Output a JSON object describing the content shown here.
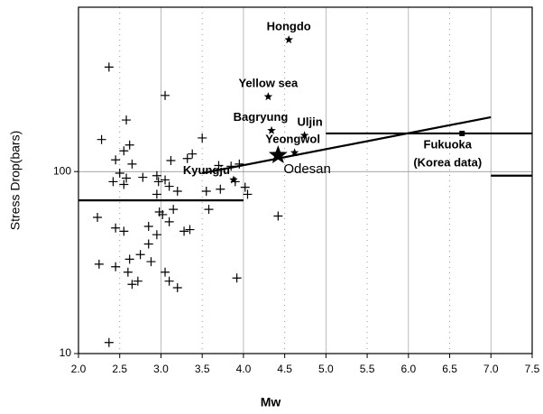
{
  "chart_data": {
    "type": "scatter",
    "x_label": "Mw",
    "y_label": "Stress Drop(bars)",
    "xlim": [
      2,
      7.5
    ],
    "xticks": [
      {
        "value": 2,
        "label": "2.0"
      },
      {
        "value": 2.5,
        "label": "2.5"
      },
      {
        "value": 3,
        "label": "3.0"
      },
      {
        "value": 3.5,
        "label": "3.5"
      },
      {
        "value": 4,
        "label": "4.0"
      },
      {
        "value": 4.5,
        "label": "4.5"
      },
      {
        "value": 5,
        "label": "5.0"
      },
      {
        "value": 5.5,
        "label": "5.5"
      },
      {
        "value": 6,
        "label": "6.0"
      },
      {
        "value": 6.5,
        "label": "6.5"
      },
      {
        "value": 7,
        "label": "7.0"
      },
      {
        "value": 7.5,
        "label": "7.5"
      }
    ],
    "ylim": [
      10,
      800
    ],
    "yticks": [
      10,
      100
    ],
    "log_y": true,
    "grid": true,
    "color": "#000000",
    "x": [
      2.37,
      3.05,
      2.58,
      2.28,
      3.5,
      2.62,
      2.55,
      3.38,
      3.32,
      3.12,
      2.45,
      2.65,
      3.7,
      3.85,
      2.5,
      2.58,
      2.78,
      2.95,
      2.97,
      3.05,
      2.42,
      2.55,
      2.95,
      3.55,
      3.72,
      3.95,
      4.05,
      3.9,
      4.02,
      3.15,
      2.98,
      3.02,
      3.58,
      3.28,
      3.35,
      3.1,
      2.85,
      2.55,
      2.45,
      2.23,
      2.85,
      2.95,
      2.62,
      2.75,
      2.45,
      2.25,
      2.6,
      3.05,
      3.1,
      2.72,
      2.65,
      3.2,
      3.92,
      2.37,
      4.42,
      3.1,
      3.2,
      2.88
    ],
    "values": [
      375,
      262,
      192,
      150,
      153,
      140,
      130,
      125,
      118,
      115,
      116,
      110,
      108,
      107,
      98,
      92,
      93,
      95,
      88,
      90,
      88,
      85,
      75,
      78,
      80,
      110,
      75,
      88,
      82,
      62,
      60,
      58,
      62,
      47,
      48,
      53,
      50,
      47,
      49,
      56,
      40,
      45,
      33,
      35,
      30,
      31,
      28,
      28,
      25,
      25,
      24,
      23,
      26,
      11.5,
      57,
      83,
      78,
      32
    ],
    "events": [
      {
        "label": "Hongdo",
        "x": 4.55,
        "y": 530
      },
      {
        "label": "Yellow sea",
        "x": 4.3,
        "y": 258
      },
      {
        "label": "Bagryung",
        "x": 4.34,
        "y": 168
      },
      {
        "label": "Uljin",
        "x": 4.74,
        "y": 158
      },
      {
        "label": "Yeongwol",
        "x": 4.62,
        "y": 127
      },
      {
        "label": "Odesan",
        "x": 4.42,
        "y": 123
      },
      {
        "label": "Kyungju",
        "x": 3.88,
        "y": 90
      },
      {
        "label": "Fukuoka",
        "x": 6.65,
        "y": 162
      }
    ],
    "notes": [
      "(Korea data)"
    ],
    "lines": [
      {
        "x": [
          2,
          4
        ],
        "y": [
          69.5,
          69.5
        ]
      },
      {
        "x": [
          3.5,
          7
        ],
        "y": [
          98,
          199
        ]
      },
      {
        "x": [
          5,
          7.5
        ],
        "y": [
          162,
          162
        ]
      },
      {
        "x": [
          7,
          7.5
        ],
        "y": [
          95,
          95
        ]
      }
    ]
  }
}
